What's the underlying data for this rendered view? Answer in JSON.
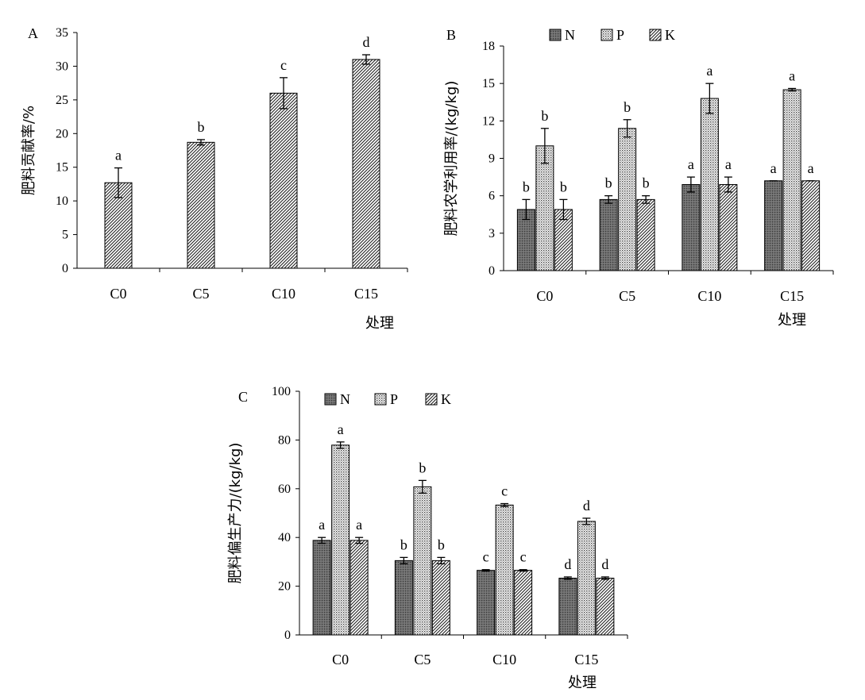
{
  "chart_data": [
    {
      "id": "A",
      "type": "bar",
      "panel_label": "A",
      "categories": [
        "C0",
        "C5",
        "C10",
        "C15"
      ],
      "ylabel": "肥料贡献率/%",
      "xlabel": "处理",
      "ylim": [
        0,
        35
      ],
      "yticks": [
        0,
        5,
        10,
        15,
        20,
        25,
        30,
        35
      ],
      "legend": [],
      "series": [
        {
          "key": "total",
          "pattern": "diag",
          "values": [
            12.7,
            18.7,
            26.0,
            31.0
          ],
          "errors": [
            2.2,
            0.4,
            2.3,
            0.7
          ],
          "letters": [
            "a",
            "b",
            "c",
            "d"
          ]
        }
      ]
    },
    {
      "id": "B",
      "type": "bar",
      "panel_label": "B",
      "categories": [
        "C0",
        "C5",
        "C10",
        "C15"
      ],
      "ylabel": "肥料农学利用率/(kg/kg)",
      "xlabel": "处理",
      "ylim": [
        0,
        18
      ],
      "yticks": [
        0,
        3,
        6,
        9,
        12,
        15,
        18
      ],
      "legend": [
        "N",
        "P",
        "K"
      ],
      "series": [
        {
          "name": "N",
          "pattern": "dark",
          "values": [
            4.9,
            5.7,
            6.9,
            7.2
          ],
          "errors": [
            0.8,
            0.3,
            0.6,
            0
          ],
          "letters": [
            "b",
            "b",
            "a",
            "a"
          ]
        },
        {
          "name": "P",
          "pattern": "dots",
          "values": [
            10.0,
            11.4,
            13.8,
            14.5
          ],
          "errors": [
            1.4,
            0.7,
            1.2,
            0.1
          ],
          "letters": [
            "b",
            "b",
            "a",
            "a"
          ]
        },
        {
          "name": "K",
          "pattern": "diag",
          "values": [
            4.9,
            5.7,
            6.9,
            7.2
          ],
          "errors": [
            0.8,
            0.3,
            0.6,
            0
          ],
          "letters": [
            "b",
            "b",
            "a",
            "a"
          ]
        }
      ]
    },
    {
      "id": "C",
      "type": "bar",
      "panel_label": "C",
      "categories": [
        "C0",
        "C5",
        "C10",
        "C15"
      ],
      "ylabel": "肥料偏生产力/(kg/kg)",
      "xlabel": "处理",
      "ylim": [
        0,
        100
      ],
      "yticks": [
        0,
        20,
        40,
        60,
        80,
        100
      ],
      "legend": [
        "N",
        "P",
        "K"
      ],
      "series": [
        {
          "name": "N",
          "pattern": "dark",
          "values": [
            38.8,
            30.5,
            26.5,
            23.3
          ],
          "errors": [
            1.2,
            1.3,
            0.3,
            0.5
          ],
          "letters": [
            "a",
            "b",
            "c",
            "d"
          ]
        },
        {
          "name": "P",
          "pattern": "dots",
          "values": [
            77.9,
            60.8,
            53.3,
            46.6
          ],
          "errors": [
            1.3,
            2.6,
            0.6,
            1.3
          ],
          "letters": [
            "a",
            "b",
            "c",
            "d"
          ]
        },
        {
          "name": "K",
          "pattern": "diag",
          "values": [
            38.8,
            30.5,
            26.5,
            23.3
          ],
          "errors": [
            1.2,
            1.3,
            0.3,
            0.5
          ],
          "letters": [
            "a",
            "b",
            "c",
            "d"
          ]
        }
      ]
    }
  ]
}
